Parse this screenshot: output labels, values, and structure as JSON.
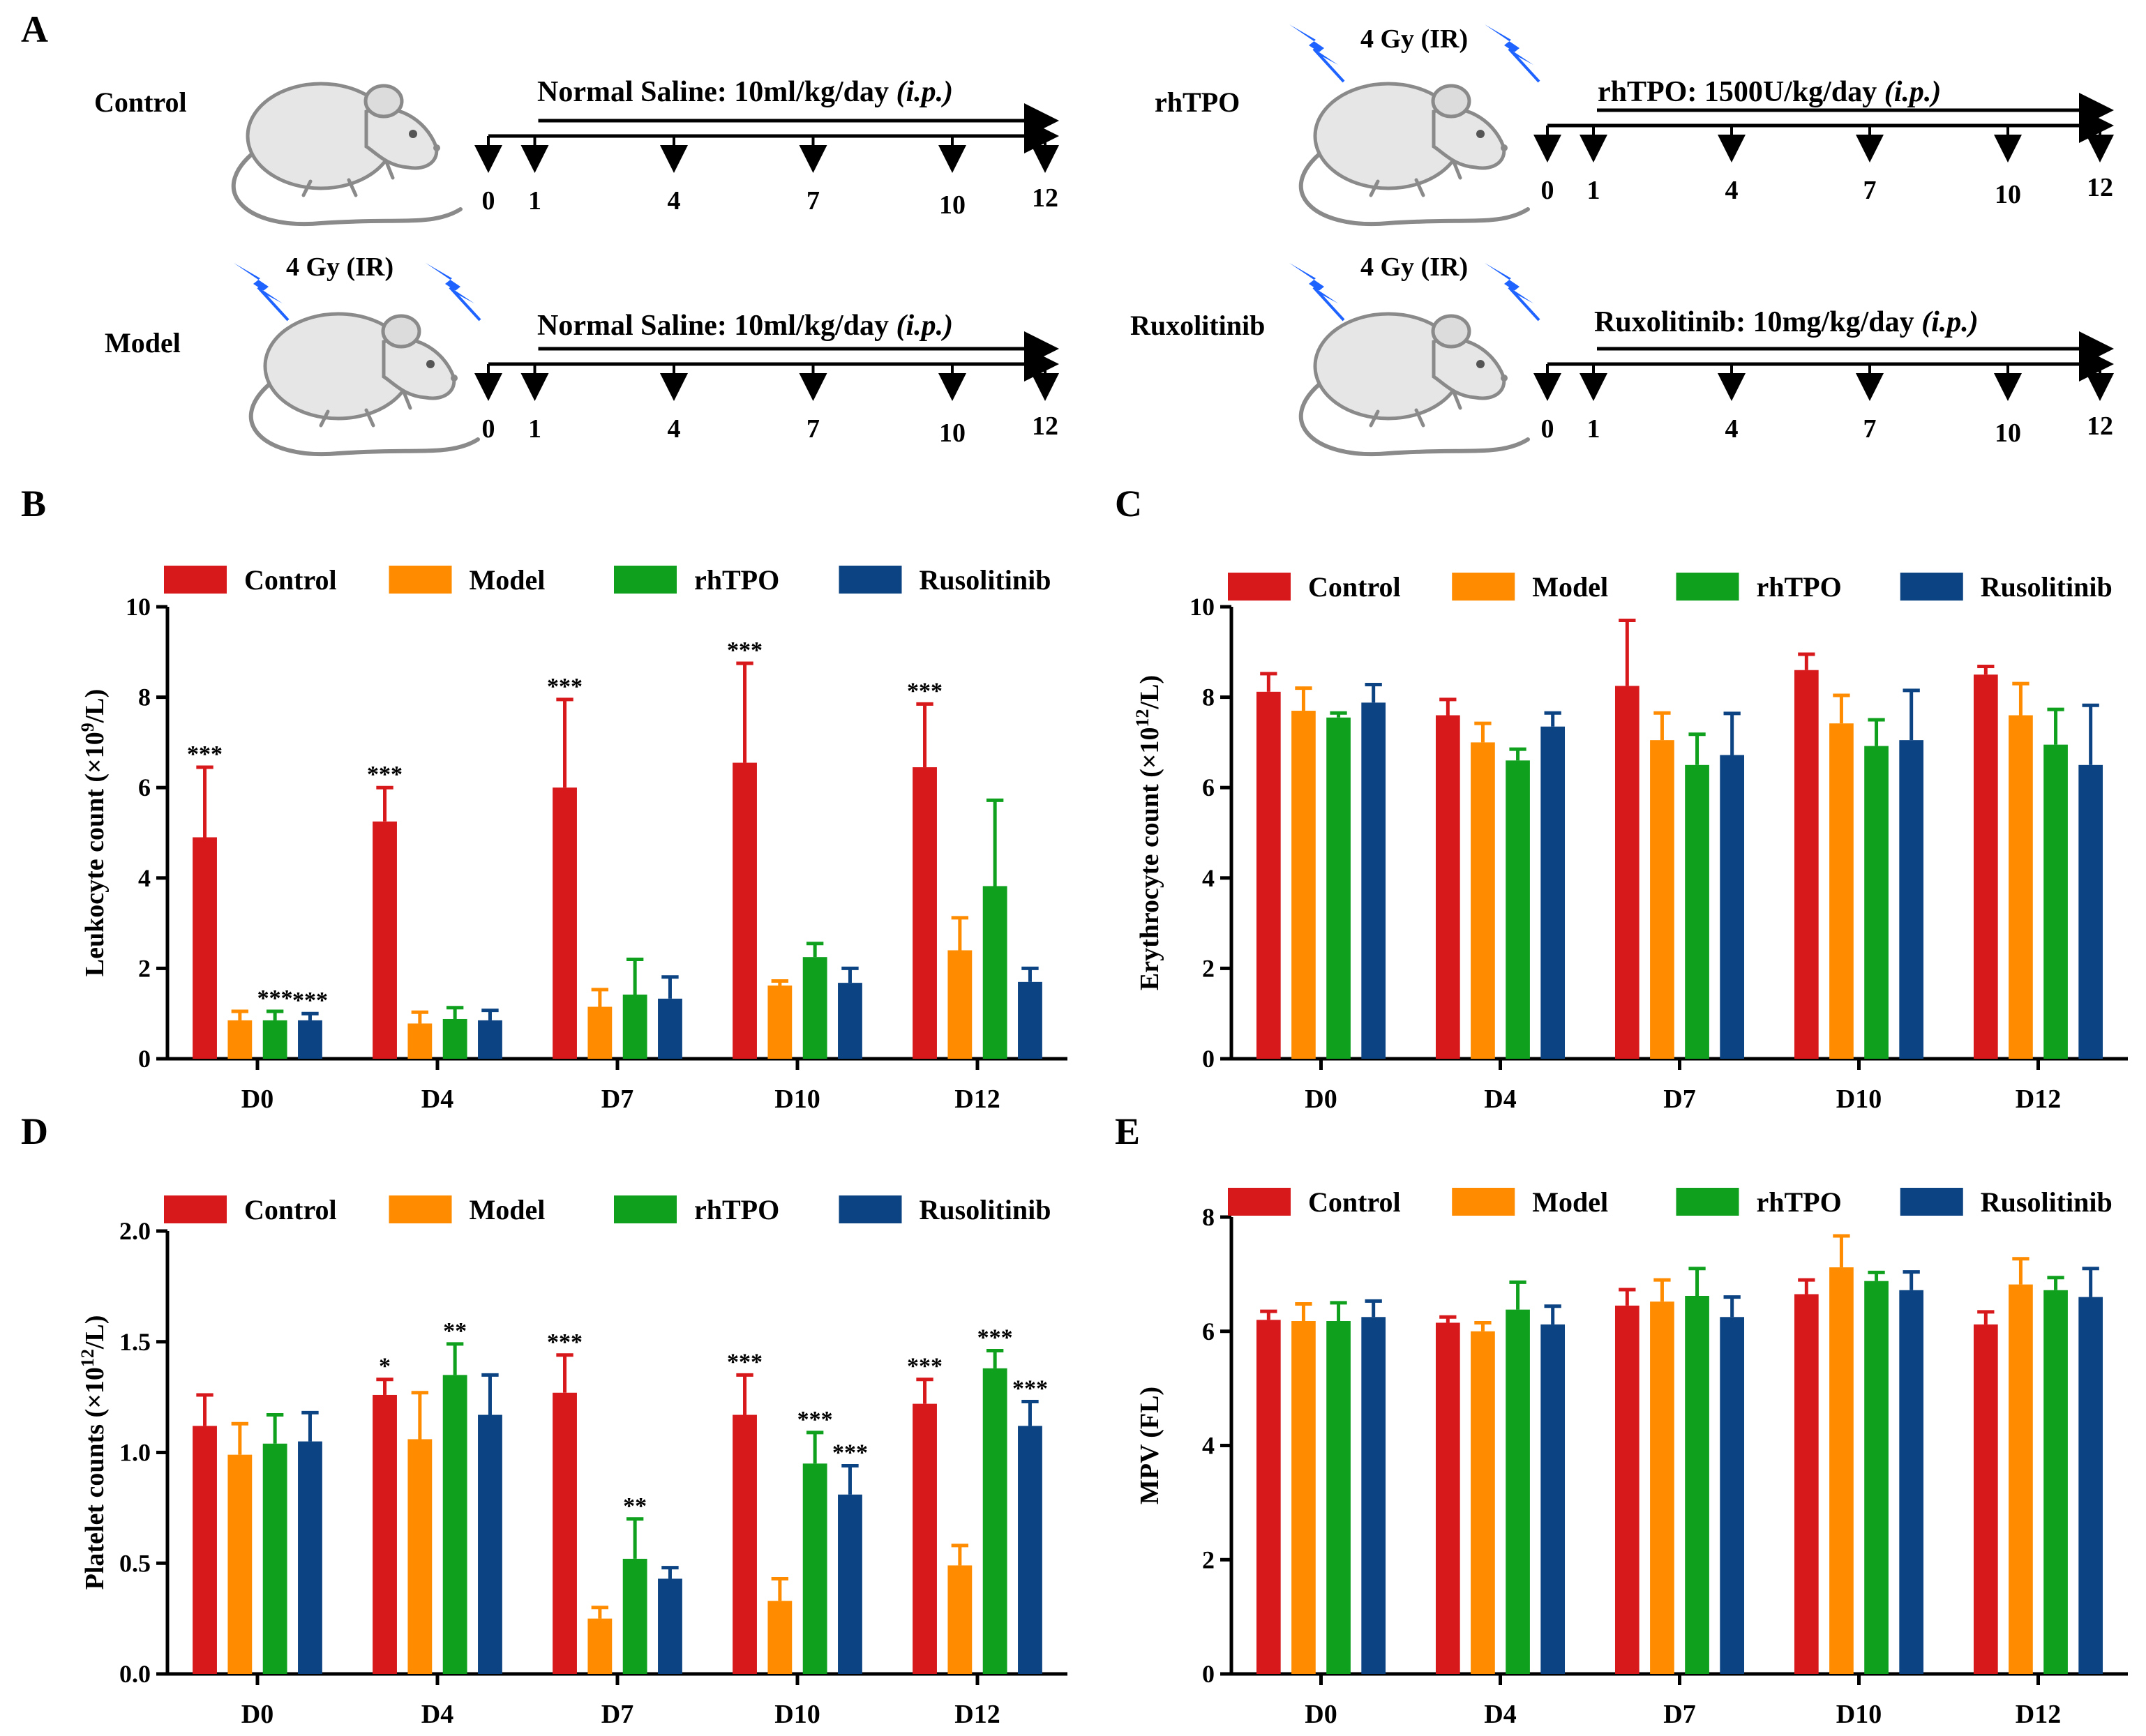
{
  "colors": {
    "Control": "#D7191C",
    "Model": "#FF8C00",
    "rhTPO": "#0FA01E",
    "Rusolitinib": "#0C4383",
    "bolt": "#1E63FF",
    "mouse_fill": "#E6E6E6",
    "mouse_stroke": "#8A8A8A"
  },
  "panel_a": {
    "label": "A",
    "dose": "4 Gy (IR)",
    "groups": [
      {
        "name": "Control",
        "treatment": "Normal Saline: 10ml/kg/day",
        "route": "(i.p.)",
        "irradiated": false
      },
      {
        "name": "Model",
        "treatment": "Normal Saline: 10ml/kg/day",
        "route": "(i.p.)",
        "irradiated": true
      },
      {
        "name": "rhTPO",
        "treatment": "rhTPO: 1500U/kg/day",
        "route": "(i.p.)",
        "irradiated": true
      },
      {
        "name": "Ruxolitinib",
        "treatment": "Ruxolitinib: 10mg/kg/day",
        "route": "(i.p.)",
        "irradiated": true
      }
    ],
    "days": [
      "0",
      "1",
      "4",
      "7",
      "10",
      "12"
    ]
  },
  "chart_data": [
    {
      "panel": "B",
      "type": "bar",
      "categories": [
        "D0",
        "D4",
        "D7",
        "D10",
        "D12"
      ],
      "ylabel_main": "Leukocyte count (×10",
      "ylabel_sup": "9",
      "ylabel_end": "/L)",
      "ylim": [
        0,
        10
      ],
      "yticks": [
        "0",
        "2",
        "4",
        "6",
        "8",
        "10"
      ],
      "series": [
        {
          "name": "Control",
          "values": [
            4.9,
            5.25,
            6.0,
            6.55,
            6.45
          ],
          "errors": [
            1.55,
            0.75,
            1.95,
            2.2,
            1.4
          ],
          "sig": [
            "***",
            "***",
            "***",
            "***",
            "***"
          ]
        },
        {
          "name": "Model",
          "values": [
            0.85,
            0.78,
            1.15,
            1.62,
            2.4
          ],
          "errors": [
            0.2,
            0.25,
            0.38,
            0.1,
            0.72
          ],
          "sig": [
            "",
            "",
            "",
            "",
            ""
          ]
        },
        {
          "name": "rhTPO",
          "values": [
            0.85,
            0.88,
            1.42,
            2.25,
            3.82
          ],
          "errors": [
            0.2,
            0.25,
            0.78,
            0.3,
            1.9
          ],
          "sig": [
            "***",
            "",
            "",
            "",
            ""
          ]
        },
        {
          "name": "Rusolitinib",
          "values": [
            0.85,
            0.85,
            1.33,
            1.68,
            1.7
          ],
          "errors": [
            0.15,
            0.22,
            0.48,
            0.32,
            0.3
          ],
          "sig": [
            "***",
            "",
            "",
            "",
            ""
          ]
        }
      ]
    },
    {
      "panel": "C",
      "type": "bar",
      "categories": [
        "D0",
        "D4",
        "D7",
        "D10",
        "D12"
      ],
      "ylabel_main": "Erythrocyte count (×10",
      "ylabel_sup": "12",
      "ylabel_end": "/L)",
      "ylim": [
        0,
        10
      ],
      "yticks": [
        "0",
        "2",
        "4",
        "6",
        "8",
        "10"
      ],
      "series": [
        {
          "name": "Control",
          "values": [
            8.12,
            7.6,
            8.25,
            8.6,
            8.5
          ],
          "errors": [
            0.4,
            0.35,
            1.45,
            0.35,
            0.18
          ],
          "sig": [
            "",
            "",
            "",
            "",
            ""
          ]
        },
        {
          "name": "Model",
          "values": [
            7.7,
            7.0,
            7.05,
            7.42,
            7.6
          ],
          "errors": [
            0.5,
            0.42,
            0.6,
            0.62,
            0.7
          ],
          "sig": [
            "",
            "",
            "",
            "",
            ""
          ]
        },
        {
          "name": "rhTPO",
          "values": [
            7.55,
            6.6,
            6.5,
            6.92,
            6.95
          ],
          "errors": [
            0.1,
            0.25,
            0.68,
            0.58,
            0.78
          ],
          "sig": [
            "",
            "",
            "",
            "",
            ""
          ]
        },
        {
          "name": "Rusolitinib",
          "values": [
            7.88,
            7.35,
            6.72,
            7.05,
            6.5
          ],
          "errors": [
            0.4,
            0.3,
            0.92,
            1.1,
            1.32
          ],
          "sig": [
            "",
            "",
            "",
            "",
            ""
          ]
        }
      ]
    },
    {
      "panel": "D",
      "type": "bar",
      "categories": [
        "D0",
        "D4",
        "D7",
        "D10",
        "D12"
      ],
      "ylabel_main": "Platelet counts (×10",
      "ylabel_sup": "12",
      "ylabel_end": "/L)",
      "ylim": [
        0,
        2.0
      ],
      "yticks": [
        "0.0",
        "0.5",
        "1.0",
        "1.5",
        "2.0"
      ],
      "series": [
        {
          "name": "Control",
          "values": [
            1.12,
            1.26,
            1.27,
            1.17,
            1.22
          ],
          "errors": [
            0.14,
            0.07,
            0.17,
            0.18,
            0.11
          ],
          "sig": [
            "",
            "*",
            "***",
            "***",
            "***"
          ]
        },
        {
          "name": "Model",
          "values": [
            0.99,
            1.06,
            0.25,
            0.33,
            0.49
          ],
          "errors": [
            0.14,
            0.21,
            0.05,
            0.1,
            0.09
          ],
          "sig": [
            "",
            "",
            "",
            "",
            ""
          ]
        },
        {
          "name": "rhTPO",
          "values": [
            1.04,
            1.35,
            0.52,
            0.95,
            1.38
          ],
          "errors": [
            0.13,
            0.14,
            0.18,
            0.14,
            0.08
          ],
          "sig": [
            "",
            "**",
            "**",
            "***",
            "***"
          ]
        },
        {
          "name": "Rusolitinib",
          "values": [
            1.05,
            1.17,
            0.43,
            0.81,
            1.12
          ],
          "errors": [
            0.13,
            0.18,
            0.05,
            0.13,
            0.11
          ],
          "sig": [
            "",
            "",
            "",
            "***",
            "***"
          ]
        }
      ]
    },
    {
      "panel": "E",
      "type": "bar",
      "categories": [
        "D0",
        "D4",
        "D7",
        "D10",
        "D12"
      ],
      "ylabel_main": "MPV (FL)",
      "ylabel_sup": "",
      "ylabel_end": "",
      "ylim": [
        0,
        8
      ],
      "yticks": [
        "0",
        "2",
        "4",
        "6",
        "8"
      ],
      "series": [
        {
          "name": "Control",
          "values": [
            6.2,
            6.15,
            6.45,
            6.65,
            6.12
          ],
          "errors": [
            0.15,
            0.1,
            0.28,
            0.25,
            0.22
          ],
          "sig": [
            "",
            "",
            "",
            "",
            ""
          ]
        },
        {
          "name": "Model",
          "values": [
            6.18,
            6.0,
            6.52,
            7.12,
            6.82
          ],
          "errors": [
            0.3,
            0.15,
            0.38,
            0.55,
            0.45
          ],
          "sig": [
            "",
            "",
            "",
            "",
            ""
          ]
        },
        {
          "name": "rhTPO",
          "values": [
            6.18,
            6.38,
            6.62,
            6.88,
            6.72
          ],
          "errors": [
            0.32,
            0.48,
            0.48,
            0.15,
            0.22
          ],
          "sig": [
            "",
            "",
            "",
            "",
            ""
          ]
        },
        {
          "name": "Rusolitinib",
          "values": [
            6.25,
            6.12,
            6.25,
            6.72,
            6.6
          ],
          "errors": [
            0.28,
            0.32,
            0.35,
            0.32,
            0.5
          ],
          "sig": [
            "",
            "",
            "",
            "",
            ""
          ]
        }
      ]
    }
  ]
}
